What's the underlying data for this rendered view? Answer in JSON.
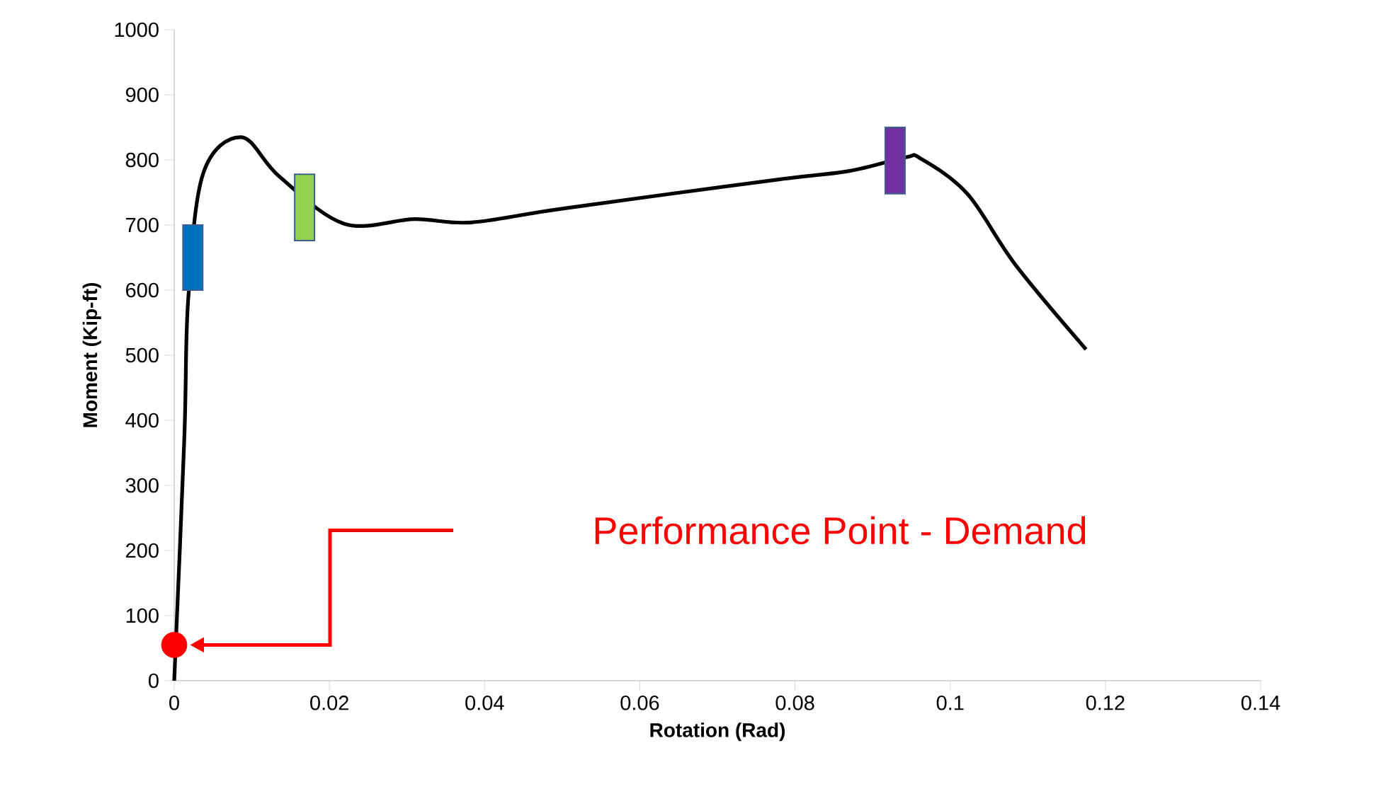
{
  "chart_data": {
    "type": "line",
    "xlabel": "Rotation (Rad)",
    "ylabel": "Moment (Kip-ft)",
    "xlim": [
      0,
      0.14
    ],
    "xticks": [
      0,
      0.02,
      0.04,
      0.06,
      0.08,
      0.1,
      0.12,
      0.14
    ],
    "ylim": [
      0,
      1000
    ],
    "yticks": [
      0,
      100,
      200,
      300,
      400,
      500,
      600,
      700,
      800,
      900,
      1000
    ],
    "series": [
      {
        "color": "#000000",
        "marker": "none",
        "x": [
          0,
          0.0013,
          0.0018,
          0.0037,
          0.0086,
          0.0135,
          0.0219,
          0.031,
          0.0383,
          0.0505,
          0.0779,
          0.087,
          0.0943,
          0.0962,
          0.1022,
          0.1084,
          0.1175
        ],
        "values": [
          0,
          372,
          585,
          778,
          835,
          775,
          702,
          709,
          704,
          726,
          770,
          783,
          804,
          802,
          748,
          639,
          509
        ]
      },
      {
        "type": "bar",
        "x": [
          0.0024,
          0.0168,
          0.0929
        ],
        "base": [
          600,
          676,
          748
        ],
        "values": [
          100,
          102,
          102
        ],
        "colors": [
          "#0070c0",
          "#92d050",
          "#7030a0"
        ]
      },
      {
        "type": "scatter",
        "marker": "circle",
        "color": "#ff0000",
        "x": [
          0
        ],
        "values": [
          55
        ]
      }
    ],
    "annotations": [
      "Performance Point - Demand"
    ]
  }
}
